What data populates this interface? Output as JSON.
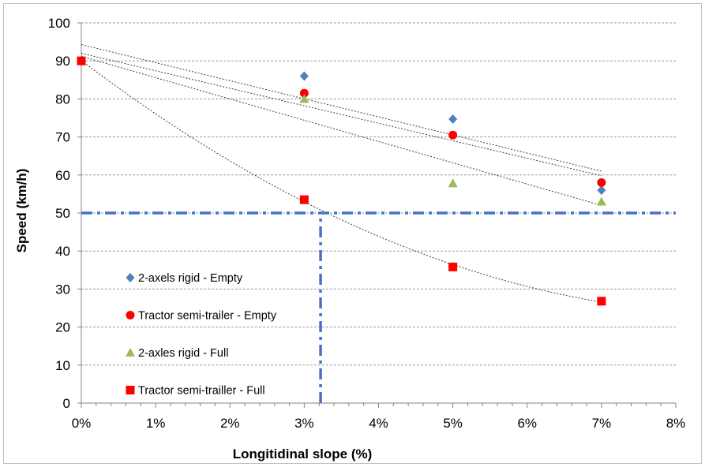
{
  "chart_data": {
    "type": "scatter",
    "title": "",
    "xlabel": "Longitidinal slope (%)",
    "ylabel": "Speed (km/h)",
    "xlim": [
      0,
      8
    ],
    "ylim": [
      0,
      100
    ],
    "x_ticks": [
      0,
      1,
      2,
      3,
      4,
      5,
      6,
      7,
      8
    ],
    "x_tick_labels": [
      "0%",
      "1%",
      "2%",
      "3%",
      "4%",
      "5%",
      "6%",
      "7%",
      "8%"
    ],
    "y_ticks": [
      0,
      10,
      20,
      30,
      40,
      50,
      60,
      70,
      80,
      90,
      100
    ],
    "y_tick_labels": [
      "0",
      "10",
      "20",
      "30",
      "40",
      "50",
      "60",
      "70",
      "80",
      "90",
      "100"
    ],
    "grid": "horizontal dashed",
    "legend_position": "lower-left inside plot",
    "series": [
      {
        "name": "2-axels rigid - Empty",
        "marker": "diamond",
        "color": "#4f81bd",
        "points": [
          [
            3,
            86
          ],
          [
            5,
            74.7
          ],
          [
            7,
            56
          ]
        ],
        "trend": {
          "type": "linear",
          "from": [
            0,
            94.3
          ],
          "to": [
            7,
            61
          ]
        }
      },
      {
        "name": "Tractor semi-trailer - Empty",
        "marker": "circle",
        "color": "#ff0000",
        "points": [
          [
            3,
            81.5
          ],
          [
            5,
            70.5
          ],
          [
            7,
            58
          ]
        ],
        "trend": {
          "type": "linear",
          "from": [
            0,
            92
          ],
          "to": [
            7,
            59.8
          ]
        }
      },
      {
        "name": "2-axles rigid - Full",
        "marker": "triangle",
        "color": "#9bbb59",
        "points": [
          [
            3,
            80
          ],
          [
            5,
            57.8
          ],
          [
            7,
            53
          ]
        ],
        "trend": {
          "type": "linear",
          "from": [
            0,
            91.2
          ],
          "to": [
            7,
            52
          ]
        }
      },
      {
        "name": "Tractor semi-trailler - Full",
        "marker": "square",
        "color": "#ff0000",
        "points": [
          [
            0,
            90
          ],
          [
            3,
            53.5
          ],
          [
            5,
            35.8
          ],
          [
            7,
            26.8
          ]
        ],
        "trend": {
          "type": "power-decay",
          "from": [
            0,
            90
          ],
          "to": [
            7,
            26
          ]
        }
      }
    ],
    "reference_lines": [
      {
        "orientation": "horizontal",
        "value": 50,
        "from_x": 0,
        "to_x": 8,
        "color": "#4472c4",
        "style": "dash-dot"
      },
      {
        "orientation": "vertical",
        "value": 3.22,
        "from_y": 0,
        "to_y": 50,
        "color": "#4472c4",
        "style": "dash-dot"
      }
    ]
  }
}
